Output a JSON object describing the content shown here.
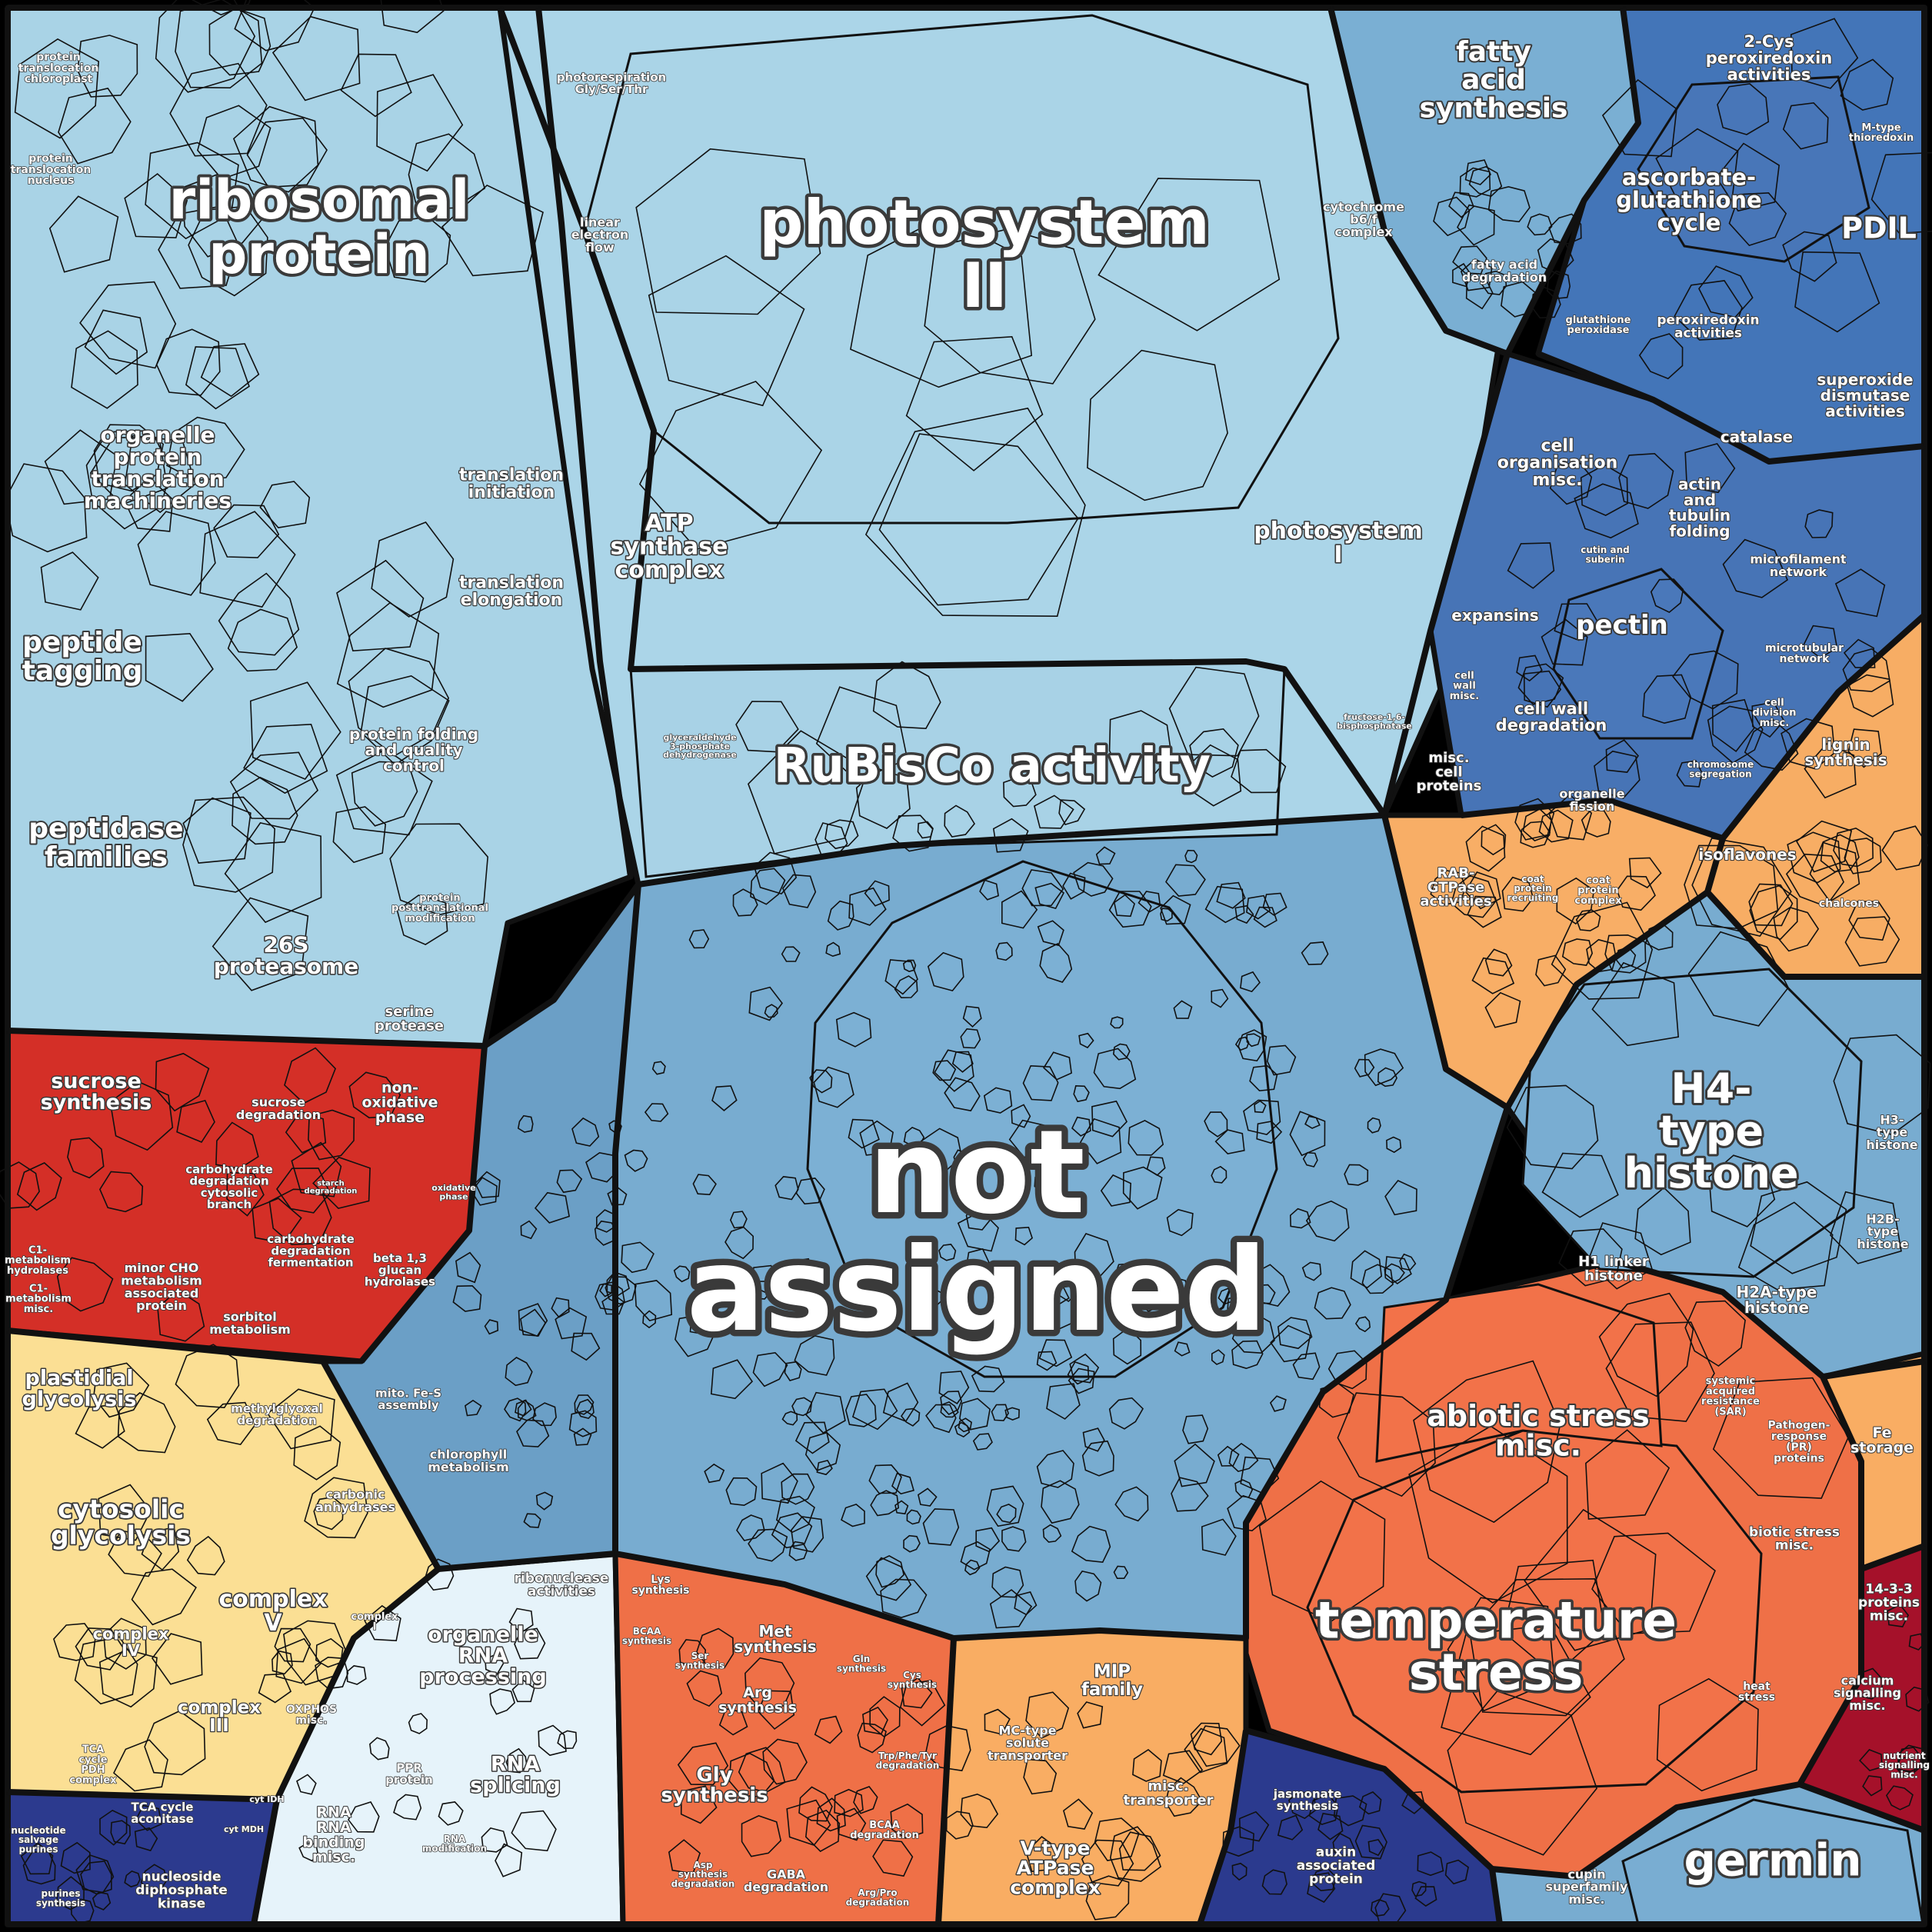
{
  "diagram": {
    "type": "voronoi-treemap",
    "colors": {
      "sky": "#a9d3e6",
      "steel": "#78acd0",
      "blue": "#4172b6",
      "navy": "#2b3a8e",
      "orange_light": "#f9ad63",
      "orange": "#ef7047",
      "red": "#d42f27",
      "crimson": "#a5112a",
      "yellow": "#fbdf94",
      "pale": "#e6f3fa",
      "border": "#111111"
    },
    "labels": [
      {
        "text": "not assigned",
        "color": "steel"
      },
      {
        "text": "photosystem II",
        "color": "sky"
      },
      {
        "text": "ribosomal protein",
        "color": "sky"
      },
      {
        "text": "RuBisCo activity",
        "color": "sky"
      },
      {
        "text": "temperature stress",
        "color": "orange"
      },
      {
        "text": "abiotic stress misc.",
        "color": "orange"
      },
      {
        "text": "H4-type histone",
        "color": "steel"
      },
      {
        "text": "germin",
        "color": "steel"
      },
      {
        "text": "photosystem I",
        "color": "sky"
      },
      {
        "text": "ATP synthase complex",
        "color": "sky"
      },
      {
        "text": "organelle protein translation machineries",
        "color": "sky"
      },
      {
        "text": "peptide tagging",
        "color": "sky"
      },
      {
        "text": "peptidase families",
        "color": "sky"
      },
      {
        "text": "26S proteasome",
        "color": "sky"
      },
      {
        "text": "protein folding and quality control",
        "color": "sky"
      },
      {
        "text": "translation initiation",
        "color": "sky"
      },
      {
        "text": "translation elongation",
        "color": "sky"
      },
      {
        "text": "linear electron flow",
        "color": "sky"
      },
      {
        "text": "cytochrome b6/f complex",
        "color": "sky"
      },
      {
        "text": "photorespiration Gly/Ser/Thr",
        "color": "sky"
      },
      {
        "text": "protein translocation chloroplast",
        "color": "sky"
      },
      {
        "text": "protein translocation nucleus",
        "color": "sky"
      },
      {
        "text": "serine protease",
        "color": "sky"
      },
      {
        "text": "protein posttranslational modification",
        "color": "sky"
      },
      {
        "text": "fatty acid synthesis",
        "color": "steel"
      },
      {
        "text": "fatty acid degradation",
        "color": "steel"
      },
      {
        "text": "2-Cys peroxiredoxin activities",
        "color": "blue"
      },
      {
        "text": "ascorbate-glutathione cycle",
        "color": "blue"
      },
      {
        "text": "PDIL",
        "color": "blue"
      },
      {
        "text": "glutathione peroxidase",
        "color": "blue"
      },
      {
        "text": "peroxiredoxin activities",
        "color": "blue"
      },
      {
        "text": "superoxide dismutase activities",
        "color": "blue"
      },
      {
        "text": "catalase",
        "color": "blue"
      },
      {
        "text": "M-type thioredoxin",
        "color": "blue"
      },
      {
        "text": "cell organisation misc.",
        "color": "blue"
      },
      {
        "text": "actin and tubulin folding",
        "color": "blue"
      },
      {
        "text": "microfilament network",
        "color": "blue"
      },
      {
        "text": "expansins",
        "color": "blue"
      },
      {
        "text": "pectin",
        "color": "blue"
      },
      {
        "text": "cutin and suberin",
        "color": "blue"
      },
      {
        "text": "cell wall misc.",
        "color": "blue"
      },
      {
        "text": "cell wall degradation",
        "color": "blue"
      },
      {
        "text": "microtubular network",
        "color": "blue"
      },
      {
        "text": "misc. cell proteins",
        "color": "blue"
      },
      {
        "text": "organelle fission",
        "color": "blue"
      },
      {
        "text": "chromosome segregation",
        "color": "blue"
      },
      {
        "text": "cell division misc.",
        "color": "blue"
      },
      {
        "text": "lignin synthesis",
        "color": "orange_light"
      },
      {
        "text": "isoflavones",
        "color": "orange_light"
      },
      {
        "text": "chalcones",
        "color": "orange_light"
      },
      {
        "text": "RAB-GTPase activities",
        "color": "orange_light"
      },
      {
        "text": "coat protein recruiting",
        "color": "orange_light"
      },
      {
        "text": "coat protein complex",
        "color": "orange_light"
      },
      {
        "text": "H3-type histone",
        "color": "steel"
      },
      {
        "text": "H2B-type histone",
        "color": "steel"
      },
      {
        "text": "H1 linker histone",
        "color": "steel"
      },
      {
        "text": "H2A-type histone",
        "color": "steel"
      },
      {
        "text": "systemic acquired resistance (SAR)",
        "color": "orange"
      },
      {
        "text": "Pathogen-response (PR) proteins",
        "color": "orange"
      },
      {
        "text": "biotic stress misc.",
        "color": "orange"
      },
      {
        "text": "heat stress",
        "color": "orange"
      },
      {
        "text": "Fe storage",
        "color": "orange_light"
      },
      {
        "text": "14-3-3 proteins misc.",
        "color": "crimson"
      },
      {
        "text": "calcium signalling misc.",
        "color": "crimson"
      },
      {
        "text": "nutrient signalling misc.",
        "color": "crimson"
      },
      {
        "text": "cupin superfamily misc.",
        "color": "steel"
      },
      {
        "text": "sucrose synthesis",
        "color": "red"
      },
      {
        "text": "sucrose degradation",
        "color": "red"
      },
      {
        "text": "non-oxidative phase",
        "color": "red"
      },
      {
        "text": "carbohydrate degradation cytosolic branch",
        "color": "red"
      },
      {
        "text": "starch degradation",
        "color": "red"
      },
      {
        "text": "oxidative phase",
        "color": "red"
      },
      {
        "text": "carbohydrate degradation fermentation",
        "color": "red"
      },
      {
        "text": "beta 1,3 glucan hydrolases",
        "color": "red"
      },
      {
        "text": "minor CHO metabolism associated protein",
        "color": "red"
      },
      {
        "text": "sorbitol metabolism",
        "color": "red"
      },
      {
        "text": "C1-metabolism hydrolases",
        "color": "red"
      },
      {
        "text": "C1-metabolism misc.",
        "color": "red"
      },
      {
        "text": "plastidial glycolysis",
        "color": "yellow"
      },
      {
        "text": "methylglyoxal degradation",
        "color": "yellow"
      },
      {
        "text": "cytosolic glycolysis",
        "color": "yellow"
      },
      {
        "text": "carbonic anhydrases",
        "color": "yellow"
      },
      {
        "text": "complex V",
        "color": "yellow"
      },
      {
        "text": "complex IV",
        "color": "yellow"
      },
      {
        "text": "complex III",
        "color": "yellow"
      },
      {
        "text": "complex I",
        "color": "yellow"
      },
      {
        "text": "OXPHOS misc.",
        "color": "yellow"
      },
      {
        "text": "TCA cycle PDH complex",
        "color": "yellow"
      },
      {
        "text": "TCA cycle aconitase",
        "color": "yellow"
      },
      {
        "text": "cyt IDH",
        "color": "yellow"
      },
      {
        "text": "cyt MDH",
        "color": "yellow"
      },
      {
        "text": "nucleotide salvage purines",
        "color": "navy"
      },
      {
        "text": "purines synthesis",
        "color": "navy"
      },
      {
        "text": "nucleoside diphosphate kinase",
        "color": "navy"
      },
      {
        "text": "ribonuclease activities",
        "color": "pale"
      },
      {
        "text": "organelle RNA processing",
        "color": "pale"
      },
      {
        "text": "RNA splicing",
        "color": "pale"
      },
      {
        "text": "PPR protein",
        "color": "pale"
      },
      {
        "text": "RNA binding misc.",
        "color": "pale"
      },
      {
        "text": "RNA modification",
        "color": "pale"
      },
      {
        "text": "mito. Fe-S assembly",
        "color": "steel"
      },
      {
        "text": "chlorophyll metabolism",
        "color": "steel"
      },
      {
        "text": "Lys synthesis",
        "color": "orange"
      },
      {
        "text": "BCAA synthesis",
        "color": "orange"
      },
      {
        "text": "Met synthesis",
        "color": "orange"
      },
      {
        "text": "Ser synthesis",
        "color": "orange"
      },
      {
        "text": "Arg synthesis",
        "color": "orange"
      },
      {
        "text": "Gln synthesis",
        "color": "orange"
      },
      {
        "text": "Cys synthesis",
        "color": "orange"
      },
      {
        "text": "Gly synthesis",
        "color": "orange"
      },
      {
        "text": "Trp/Phe/Tyr degradation",
        "color": "orange"
      },
      {
        "text": "BCAA degradation",
        "color": "orange"
      },
      {
        "text": "Asp synthesis",
        "color": "orange"
      },
      {
        "text": "GABA degradation",
        "color": "orange"
      },
      {
        "text": "Arg/Pro degradation",
        "color": "orange"
      },
      {
        "text": "MIP family",
        "color": "orange_light"
      },
      {
        "text": "MC-type solute transporter",
        "color": "orange_light"
      },
      {
        "text": "misc. transporter",
        "color": "orange_light"
      },
      {
        "text": "V-type ATPase complex",
        "color": "orange_light"
      },
      {
        "text": "jasmonate synthesis",
        "color": "navy"
      },
      {
        "text": "auxin associated protein",
        "color": "navy"
      },
      {
        "text": "glyceraldehyde 3-phosphate dehydrogenase",
        "color": "sky"
      },
      {
        "text": "fructose-1,6-bisphosphatase",
        "color": "sky"
      }
    ]
  }
}
